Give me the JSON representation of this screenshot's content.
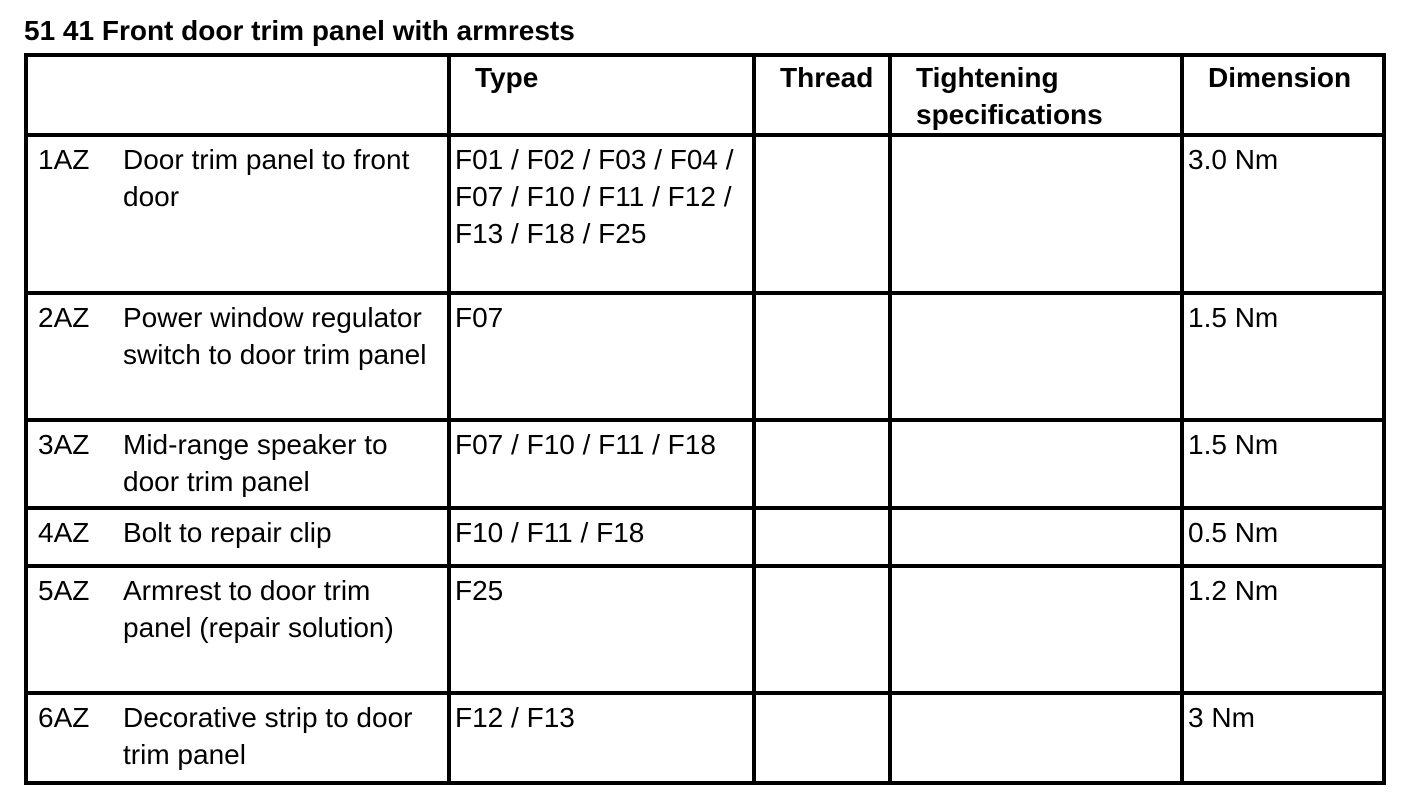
{
  "title": "51 41 Front door trim panel with armrests",
  "headers": {
    "item": "",
    "type": "Type",
    "thread": "Thread",
    "tightening": "Tightening specifications",
    "dimension": "Dimension"
  },
  "rows": [
    {
      "code": "1AZ",
      "description": "Door trim panel to front door",
      "type": "F01 / F02 / F03 / F04 / F07 / F10 / F11 / F12 / F13 / F18 / F25",
      "thread": "",
      "tightening": "",
      "dimension": "3.0 Nm"
    },
    {
      "code": "2AZ",
      "description": "Power window regulator switch to door trim panel",
      "type": "F07",
      "thread": "",
      "tightening": "",
      "dimension": "1.5 Nm"
    },
    {
      "code": "3AZ",
      "description": "Mid-range speaker to door trim panel",
      "type": "F07 / F10 / F11 / F18",
      "thread": "",
      "tightening": "",
      "dimension": "1.5 Nm"
    },
    {
      "code": "4AZ",
      "description": "Bolt to repair clip",
      "type": "F10 / F11 / F18",
      "thread": "",
      "tightening": "",
      "dimension": "0.5 Nm"
    },
    {
      "code": "5AZ",
      "description": "Armrest to door trim panel (repair solution)",
      "type": "F25",
      "thread": "",
      "tightening": "",
      "dimension": "1.2 Nm"
    },
    {
      "code": "6AZ",
      "description": "Decorative strip to door trim panel",
      "type": "F12 / F13",
      "thread": "",
      "tightening": "",
      "dimension": "3 Nm"
    }
  ]
}
